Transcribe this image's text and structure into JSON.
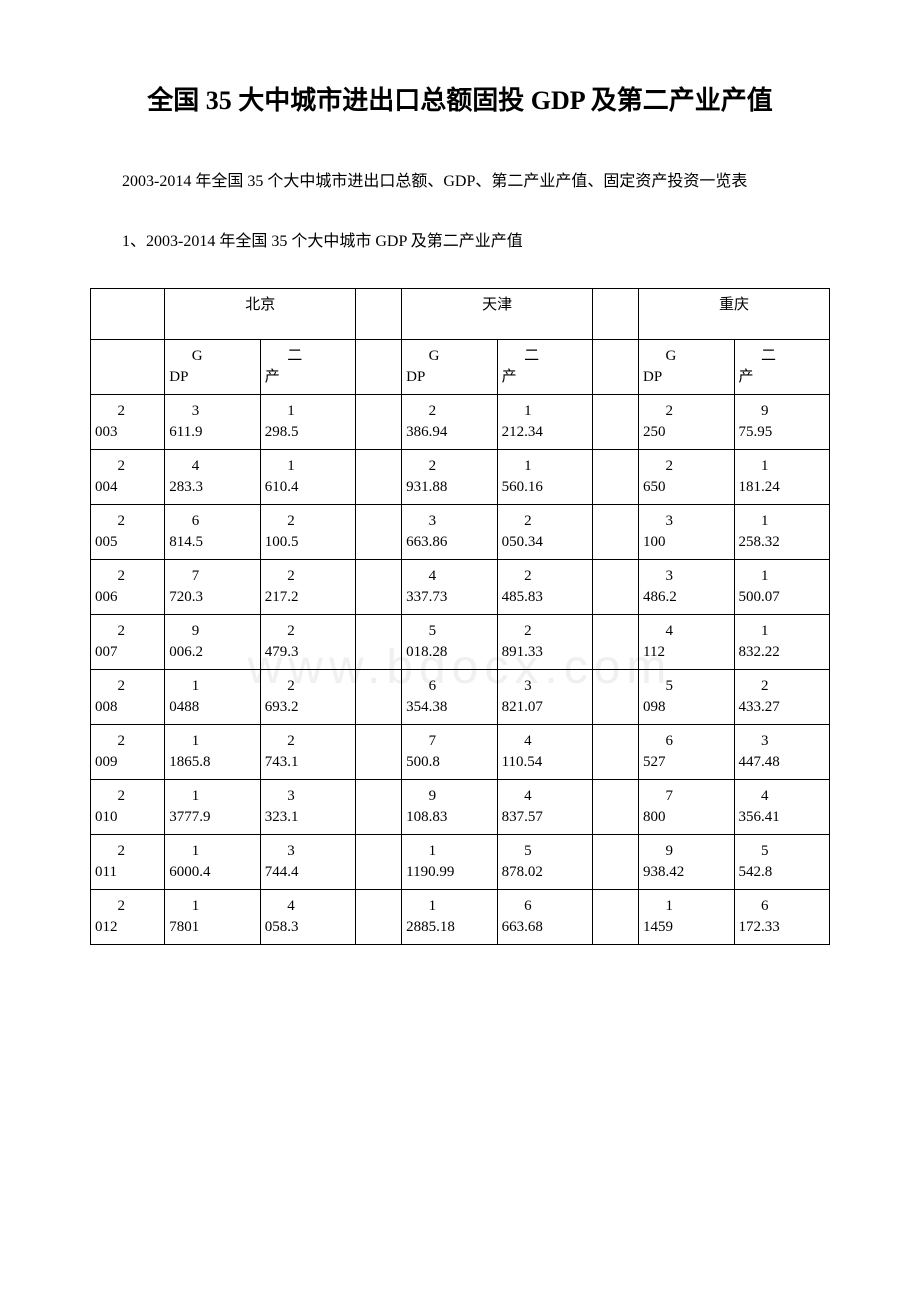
{
  "title": "全国 35 大中城市进出口总额固投 GDP 及第二产业产值",
  "intro": "2003-2014 年全国 35 个大中城市进出口总额、GDP、第二产业产值、固定资产投资一览表",
  "section1": "1、2003-2014 年全国 35 个大中城市 GDP 及第二产业产值",
  "watermark": "www.bdocx.com",
  "cities": [
    "北京",
    "天津",
    "重庆"
  ],
  "headers": {
    "gdp": "GDP",
    "second": "二产"
  },
  "rows": [
    {
      "year_a": "2",
      "year_b": "003",
      "c1a": "3",
      "c1b": "611.9",
      "c2a": "1",
      "c2b": "298.5",
      "c3a": "2",
      "c3b": "386.94",
      "c4a": "1",
      "c4b": "212.34",
      "c5a": "2",
      "c5b": "250",
      "c6a": "9",
      "c6b": "75.95"
    },
    {
      "year_a": "2",
      "year_b": "004",
      "c1a": "4",
      "c1b": "283.3",
      "c2a": "1",
      "c2b": "610.4",
      "c3a": "2",
      "c3b": "931.88",
      "c4a": "1",
      "c4b": "560.16",
      "c5a": "2",
      "c5b": "650",
      "c6a": "1",
      "c6b": "181.24"
    },
    {
      "year_a": "2",
      "year_b": "005",
      "c1a": "6",
      "c1b": "814.5",
      "c2a": "2",
      "c2b": "100.5",
      "c3a": "3",
      "c3b": "663.86",
      "c4a": "2",
      "c4b": "050.34",
      "c5a": "3",
      "c5b": "100",
      "c6a": "1",
      "c6b": "258.32"
    },
    {
      "year_a": "2",
      "year_b": "006",
      "c1a": "7",
      "c1b": "720.3",
      "c2a": "2",
      "c2b": "217.2",
      "c3a": "4",
      "c3b": "337.73",
      "c4a": "2",
      "c4b": "485.83",
      "c5a": "3",
      "c5b": "486.2",
      "c6a": "1",
      "c6b": "500.07"
    },
    {
      "year_a": "2",
      "year_b": "007",
      "c1a": "9",
      "c1b": "006.2",
      "c2a": "2",
      "c2b": "479.3",
      "c3a": "5",
      "c3b": "018.28",
      "c4a": "2",
      "c4b": "891.33",
      "c5a": "4",
      "c5b": "112",
      "c6a": "1",
      "c6b": "832.22"
    },
    {
      "year_a": "2",
      "year_b": "008",
      "c1a": "1",
      "c1b": "0488",
      "c2a": "2",
      "c2b": "693.2",
      "c3a": "6",
      "c3b": "354.38",
      "c4a": "3",
      "c4b": "821.07",
      "c5a": "5",
      "c5b": "098",
      "c6a": "2",
      "c6b": "433.27"
    },
    {
      "year_a": "2",
      "year_b": "009",
      "c1a": "1",
      "c1b": "1865.8",
      "c2a": "2",
      "c2b": "743.1",
      "c3a": "7",
      "c3b": "500.8",
      "c4a": "4",
      "c4b": "110.54",
      "c5a": "6",
      "c5b": "527",
      "c6a": "3",
      "c6b": "447.48"
    },
    {
      "year_a": "2",
      "year_b": "010",
      "c1a": "1",
      "c1b": "3777.9",
      "c2a": "3",
      "c2b": "323.1",
      "c3a": "9",
      "c3b": "108.83",
      "c4a": "4",
      "c4b": "837.57",
      "c5a": "7",
      "c5b": "800",
      "c6a": "4",
      "c6b": "356.41"
    },
    {
      "year_a": "2",
      "year_b": "011",
      "c1a": "1",
      "c1b": "6000.4",
      "c2a": "3",
      "c2b": "744.4",
      "c3a": "1",
      "c3b": "1190.99",
      "c4a": "5",
      "c4b": "878.02",
      "c5a": "9",
      "c5b": "938.42",
      "c6a": "5",
      "c6b": "542.8"
    },
    {
      "year_a": "2",
      "year_b": "012",
      "c1a": "1",
      "c1b": "7801",
      "c2a": "4",
      "c2b": "058.3",
      "c3a": "1",
      "c3b": "2885.18",
      "c4a": "6",
      "c4b": "663.68",
      "c5a": "1",
      "c5b": "1459",
      "c6a": "6",
      "c6b": "172.33"
    }
  ]
}
